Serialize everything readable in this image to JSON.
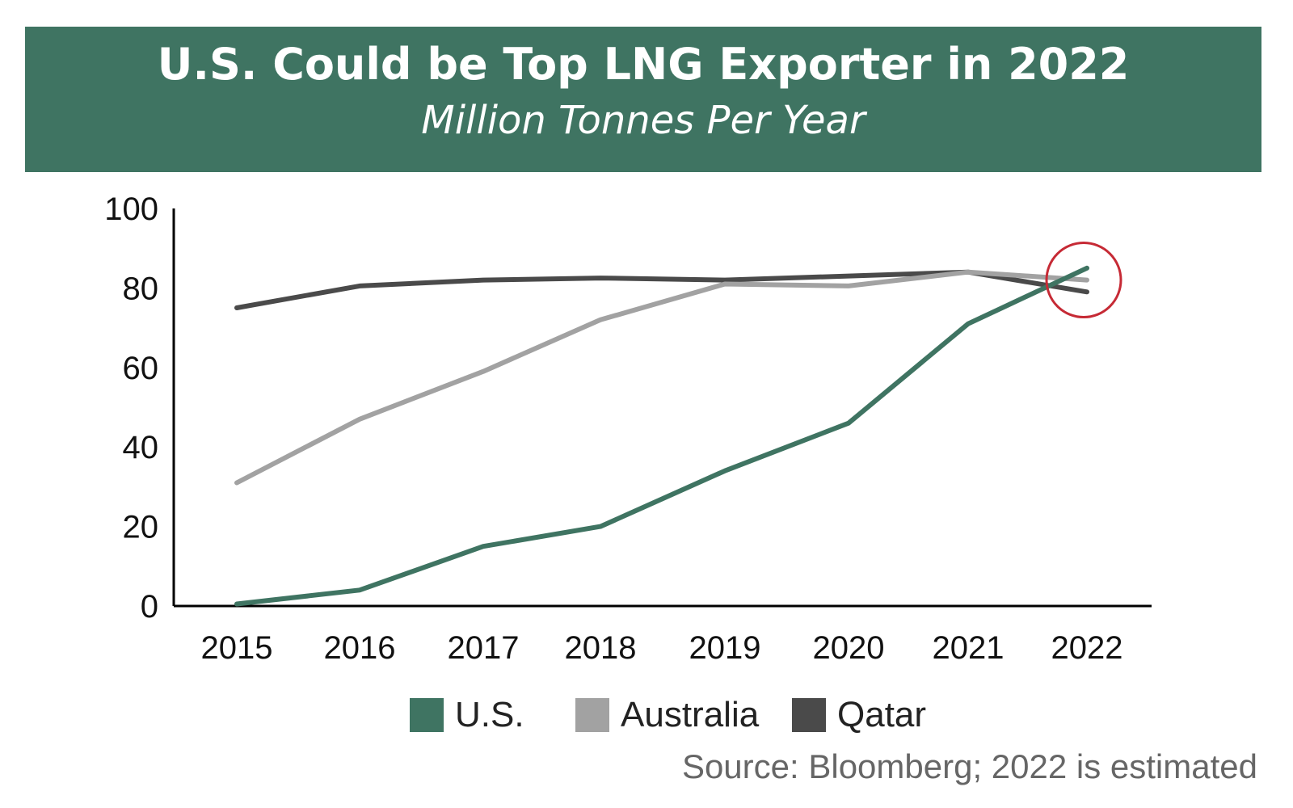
{
  "chart_data": {
    "type": "line",
    "title": "U.S. Could be Top LNG Exporter in 2022",
    "subtitle": "Million Tonnes Per Year",
    "x": [
      "2015",
      "2016",
      "2017",
      "2018",
      "2019",
      "2020",
      "2021",
      "2022"
    ],
    "series": [
      {
        "name": "U.S.",
        "color": "#3f7462",
        "values": [
          0.5,
          4,
          15,
          20,
          34,
          46,
          71,
          85
        ]
      },
      {
        "name": "Australia",
        "color": "#a2a2a2",
        "values": [
          31,
          47,
          59,
          72,
          81,
          80.5,
          84,
          82
        ]
      },
      {
        "name": "Qatar",
        "color": "#4a4a4a",
        "values": [
          75,
          80.5,
          82,
          82.5,
          82,
          83,
          84,
          79
        ]
      }
    ],
    "yticks": [
      0,
      20,
      40,
      60,
      80,
      100
    ],
    "ylim": [
      0,
      100
    ],
    "xlabel": "",
    "ylabel": "",
    "grid": false,
    "legend_position": "bottom",
    "highlight": {
      "x": "2022",
      "y": 82,
      "style": "red-circle"
    },
    "source": "Source: Bloomberg; 2022 is estimated"
  }
}
